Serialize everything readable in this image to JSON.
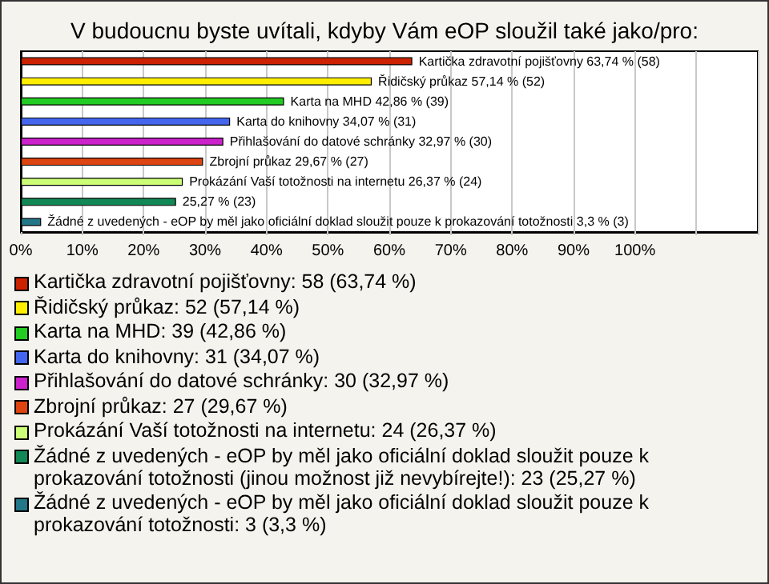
{
  "chart_data": {
    "type": "bar",
    "orientation": "horizontal",
    "stacked": true,
    "title": "V budoucnu byste uvítali, kdyby Vám eOP sloužil také jako/pro:",
    "categories": [
      null,
      null,
      null,
      null,
      null,
      null,
      null,
      null,
      null
    ],
    "series": [
      {
        "name": "Kartička zdravotní pojišťovny: 58 (63,74 %)",
        "color": "#cc2200",
        "values": [
          63.74,
          null,
          null,
          null,
          null,
          null,
          null,
          null,
          null
        ],
        "value_labels": [
          "Kartička zdravotní pojišťovny 63,74 % (58)",
          null,
          null,
          null,
          null,
          null,
          null,
          null,
          null
        ]
      },
      {
        "name": "Řidičský průkaz: 52 (57,14 %)",
        "color": "#ffee00",
        "values": [
          null,
          57.14,
          null,
          null,
          null,
          null,
          null,
          null,
          null
        ],
        "value_labels": [
          null,
          "Řidičský průkaz 57,14 % (52)",
          null,
          null,
          null,
          null,
          null,
          null,
          null
        ]
      },
      {
        "name": "Karta na MHD: 39 (42,86 %)",
        "color": "#22cc22",
        "values": [
          null,
          null,
          42.86,
          null,
          null,
          null,
          null,
          null,
          null
        ],
        "value_labels": [
          null,
          null,
          "Karta na MHD 42,86 % (39)",
          null,
          null,
          null,
          null,
          null,
          null
        ]
      },
      {
        "name": "Karta do knihovny: 31 (34,07 %)",
        "color": "#4466ee",
        "values": [
          null,
          null,
          null,
          34.07,
          null,
          null,
          null,
          null,
          null
        ],
        "value_labels": [
          null,
          null,
          null,
          "Karta do knihovny 34,07 % (31)",
          null,
          null,
          null,
          null,
          null
        ]
      },
      {
        "name": "Přihlašování do datové schránky: 30 (32,97 %)",
        "color": "#cc22cc",
        "values": [
          null,
          null,
          null,
          null,
          32.97,
          null,
          null,
          null,
          null
        ],
        "value_labels": [
          null,
          null,
          null,
          null,
          "Přihlašování do datové schránky 32,97 % (30)",
          null,
          null,
          null,
          null
        ]
      },
      {
        "name": "Zbrojní průkaz: 27 (29,67 %)",
        "color": "#dd4411",
        "values": [
          null,
          null,
          null,
          null,
          null,
          29.67,
          null,
          null,
          null
        ],
        "value_labels": [
          null,
          null,
          null,
          null,
          null,
          "Zbrojní průkaz 29,67 % (27)",
          null,
          null,
          null
        ]
      },
      {
        "name": "Prokázání Vaší totožnosti na internetu: 24 (26,37 %)",
        "color": "#ccff77",
        "values": [
          null,
          null,
          null,
          null,
          null,
          null,
          26.37,
          null,
          null
        ],
        "value_labels": [
          null,
          null,
          null,
          null,
          null,
          null,
          "Prokázání Vaší totožnosti na internetu 26,37 % (24)",
          null,
          null
        ]
      },
      {
        "name": "Žádné z uvedených - eOP by měl jako oficiální doklad sloužit pouze k prokazování totožnosti (jinou možnost již nevybírejte!): 23 (25,27 %)",
        "color": "#118855",
        "values": [
          null,
          null,
          null,
          null,
          null,
          null,
          null,
          25.27,
          null
        ],
        "value_labels": [
          null,
          null,
          null,
          null,
          null,
          null,
          null,
          "25,27 % (23)",
          null
        ]
      },
      {
        "name": "Žádné z uvedených - eOP by měl jako oficiální doklad sloužit pouze k prokazování totožnosti: 3 (3,3 %)",
        "color": "#227788",
        "values": [
          null,
          null,
          null,
          null,
          null,
          null,
          null,
          null,
          3.3
        ],
        "value_labels": [
          null,
          null,
          null,
          null,
          null,
          null,
          null,
          null,
          "Žádné z uvedených - eOP by měl jako oficiální doklad sloužit pouze k prokazování totožnosti 3,3 % (3)"
        ]
      }
    ],
    "xlim": [
      0,
      120
    ],
    "xticks": [
      {
        "value": 0,
        "label": "0%"
      },
      {
        "value": 10,
        "label": "10%"
      },
      {
        "value": 20,
        "label": "20%"
      },
      {
        "value": 30,
        "label": "30%"
      },
      {
        "value": 40,
        "label": "40%"
      },
      {
        "value": 50,
        "label": "50%"
      },
      {
        "value": 60,
        "label": "60%"
      },
      {
        "value": 70,
        "label": "70%"
      },
      {
        "value": 80,
        "label": "80%"
      },
      {
        "value": 90,
        "label": "90%"
      },
      {
        "value": 100,
        "label": "100%"
      },
      {
        "value": 110,
        "label": null
      },
      {
        "value": 120,
        "label": null
      }
    ],
    "grid": "x",
    "legend": "bottom",
    "tick_labels": "x"
  }
}
